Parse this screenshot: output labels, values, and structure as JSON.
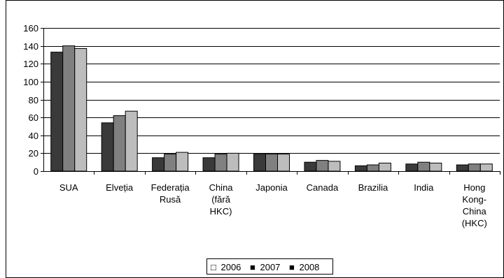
{
  "chart_data": {
    "type": "bar",
    "categories": [
      [
        "SUA"
      ],
      [
        "Elveția"
      ],
      [
        "Federația",
        "Rusă"
      ],
      [
        "China",
        "(fără",
        "HKC)"
      ],
      [
        "Japonia"
      ],
      [
        "Canada"
      ],
      [
        "Brazilia"
      ],
      [
        "India"
      ],
      [
        "Hong",
        "Kong-",
        "China",
        "(HKC)"
      ]
    ],
    "series": [
      {
        "name": "2006",
        "color": "#3a3a3a",
        "values": [
          133,
          54,
          15,
          15,
          19,
          10,
          6,
          8,
          7
        ]
      },
      {
        "name": "2007",
        "color": "#808080",
        "values": [
          140,
          62,
          19,
          19,
          19,
          12,
          7,
          10,
          8
        ]
      },
      {
        "name": "2008",
        "color": "#bdbdbd",
        "values": [
          137,
          67,
          21,
          20,
          19,
          11,
          9,
          9,
          8
        ]
      }
    ],
    "ylim": [
      0,
      160
    ],
    "yticks": [
      0,
      20,
      40,
      60,
      80,
      100,
      120,
      140,
      160
    ],
    "ytick_labels": [
      "0",
      "20",
      "40",
      "60",
      "80",
      "100",
      "120",
      "140",
      "160"
    ],
    "grid": true,
    "legend": {
      "placement": "bottom-center",
      "entries": [
        {
          "symbol": "□",
          "label": "2006"
        },
        {
          "symbol": "■",
          "label": "2007"
        },
        {
          "symbol": "■",
          "label": "2008"
        }
      ]
    }
  }
}
